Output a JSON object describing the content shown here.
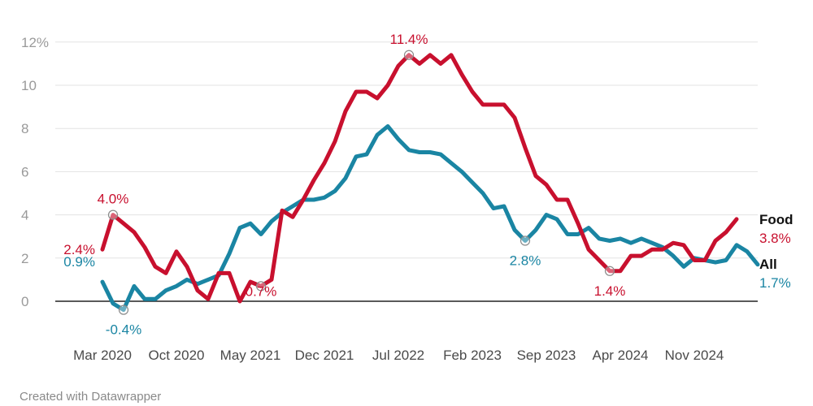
{
  "chart_data": {
    "type": "line",
    "ylim": [
      0,
      12
    ],
    "yticks": [
      "0",
      "2",
      "4",
      "6",
      "8",
      "10",
      "12%"
    ],
    "xticks": [
      {
        "label": "Mar 2020",
        "month": 0
      },
      {
        "label": "Oct 2020",
        "month": 7
      },
      {
        "label": "May 2021",
        "month": 14
      },
      {
        "label": "Dec 2021",
        "month": 21
      },
      {
        "label": "Jul 2022",
        "month": 28
      },
      {
        "label": "Feb 2023",
        "month": 35
      },
      {
        "label": "Sep 2023",
        "month": 42
      },
      {
        "label": "Apr 2024",
        "month": 49
      },
      {
        "label": "Nov 2024",
        "month": 56
      }
    ],
    "series": [
      {
        "name": "All",
        "end_label": "1.7%",
        "color": "#1a85a3",
        "values": [
          0.9,
          -0.1,
          -0.4,
          0.7,
          0.1,
          0.1,
          0.5,
          0.7,
          1.0,
          0.8,
          1.0,
          1.2,
          2.2,
          3.4,
          3.6,
          3.1,
          3.7,
          4.1,
          4.4,
          4.7,
          4.7,
          4.8,
          5.1,
          5.7,
          6.7,
          6.8,
          7.7,
          8.1,
          7.5,
          7.0,
          6.9,
          6.9,
          6.8,
          6.4,
          6.0,
          5.5,
          5.0,
          4.3,
          4.4,
          3.3,
          2.8,
          3.3,
          4.0,
          3.8,
          3.1,
          3.1,
          3.4,
          2.9,
          2.8,
          2.9,
          2.7,
          2.9,
          2.7,
          2.5,
          2.1,
          1.6,
          2.0,
          1.9,
          1.8,
          1.9,
          2.6,
          2.3,
          1.7
        ]
      },
      {
        "name": "Food",
        "end_label": "3.8%",
        "color": "#c8102e",
        "values": [
          2.4,
          4.0,
          3.6,
          3.2,
          2.5,
          1.6,
          1.3,
          2.3,
          1.6,
          0.5,
          0.1,
          1.3,
          1.3,
          0.0,
          0.9,
          0.7,
          1.0,
          4.2,
          3.9,
          4.7,
          5.6,
          6.4,
          7.4,
          8.8,
          9.7,
          9.7,
          9.4,
          10.0,
          10.9,
          11.4,
          11.0,
          11.4,
          11.0,
          11.4,
          10.5,
          9.7,
          9.1,
          9.1,
          9.1,
          8.5,
          7.1,
          5.8,
          5.4,
          4.7,
          4.7,
          3.6,
          2.4,
          1.9,
          1.4,
          1.4,
          2.1,
          2.1,
          2.4,
          2.4,
          2.7,
          2.6,
          1.9,
          1.9,
          2.8,
          3.2,
          3.8
        ]
      }
    ],
    "annotations": [
      {
        "series": "Food",
        "month": 1,
        "value": 4.0,
        "label": "4.0%",
        "marker": true
      },
      {
        "series": "Food",
        "month": 0,
        "value": 2.4,
        "label": "2.4%",
        "marker": false
      },
      {
        "series": "All",
        "month": 0,
        "value": 0.9,
        "label": "0.9%",
        "marker": false
      },
      {
        "series": "All",
        "month": 2,
        "value": -0.4,
        "label": "-0.4%",
        "marker": true
      },
      {
        "series": "Food",
        "month": 15,
        "value": 0.7,
        "label": "0.7%",
        "marker": true
      },
      {
        "series": "Food",
        "month": 29,
        "value": 11.4,
        "label": "11.4%",
        "marker": true
      },
      {
        "series": "All",
        "month": 40,
        "value": 2.8,
        "label": "2.8%",
        "marker": true
      },
      {
        "series": "Food",
        "month": 48,
        "value": 1.4,
        "label": "1.4%",
        "marker": true
      }
    ]
  },
  "footer": {
    "credit": "Created with Datawrapper"
  }
}
